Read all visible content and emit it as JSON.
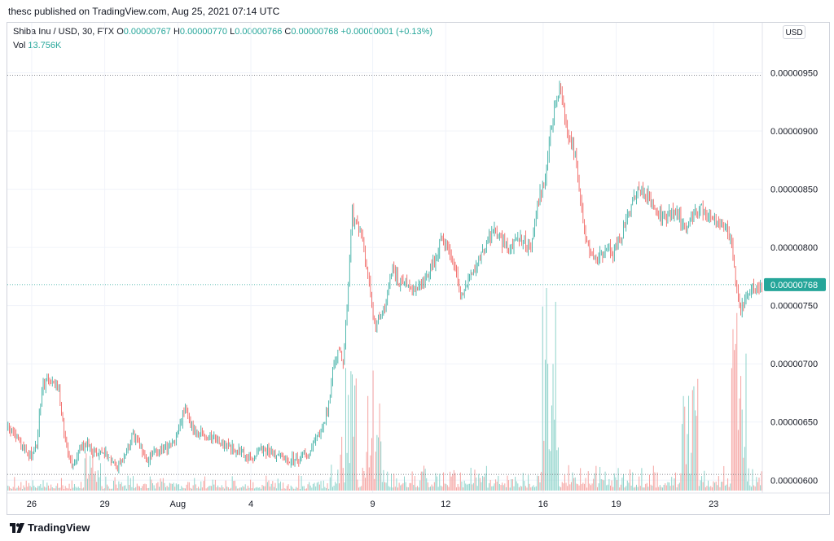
{
  "header": {
    "publisher_line": "thesc published on TradingView.com, Aug 25, 2021 07:14 UTC"
  },
  "legend": {
    "symbol": "Shiba Inu / USD, 30, FTX",
    "o_label": "O",
    "o_value": "0.00000767",
    "h_label": "H",
    "h_value": "0.00000770",
    "l_label": "L",
    "l_value": "0.00000766",
    "c_label": "C",
    "c_value": "0.00000768",
    "change": "+0.00000001 (+0.13%)",
    "vol_label": "Vol",
    "vol_value": "13.756K"
  },
  "currency_button": "USD",
  "footer": {
    "brand": "TradingView"
  },
  "colors": {
    "up": "#26a69a",
    "down": "#ef5350",
    "vol_up": "#8fd3cb",
    "vol_down": "#f5a3a1",
    "grid": "#f0f3fa",
    "current_price": "#26a69a"
  },
  "chart_data": {
    "type": "candlestick",
    "symbol": "Shiba Inu / USD",
    "interval": "30",
    "exchange": "FTX",
    "y_ticks": [
      "0.00000950",
      "0.00000900",
      "0.00000850",
      "0.00000800",
      "0.00000750",
      "0.00000700",
      "0.00000650",
      "0.00000600"
    ],
    "y_tick_values": [
      9.5e-06,
      9e-06,
      8.5e-06,
      8e-06,
      7.5e-06,
      7e-06,
      6.5e-06,
      6e-06
    ],
    "ylim": [
      5.89e-06,
      9.93e-06
    ],
    "x_ticks": [
      {
        "label": "26",
        "day": 1
      },
      {
        "label": "29",
        "day": 4
      },
      {
        "label": "Aug",
        "day": 7
      },
      {
        "label": "4",
        "day": 10
      },
      {
        "label": "9",
        "day": 15
      },
      {
        "label": "12",
        "day": 18
      },
      {
        "label": "16",
        "day": 22
      },
      {
        "label": "19",
        "day": 25
      },
      {
        "label": "23",
        "day": 29
      }
    ],
    "x_range_days": [
      0,
      31
    ],
    "current_price": "0.00000768",
    "current_price_value": 7.68e-06,
    "period_high_value": 9.48e-06,
    "period_low_value": 6.05e-06,
    "price_path": [
      [
        0.0,
        6.45e-06
      ],
      [
        0.3,
        6.4e-06
      ],
      [
        0.6,
        6.28e-06
      ],
      [
        0.9,
        6.2e-06
      ],
      [
        1.2,
        6.3e-06
      ],
      [
        1.4,
        6.75e-06
      ],
      [
        1.6,
        6.88e-06
      ],
      [
        1.9,
        6.8e-06
      ],
      [
        2.1,
        6.82e-06
      ],
      [
        2.3,
        6.45e-06
      ],
      [
        2.5,
        6.25e-06
      ],
      [
        2.7,
        6.12e-06
      ],
      [
        3.0,
        6.28e-06
      ],
      [
        3.3,
        6.3e-06
      ],
      [
        3.6,
        6.22e-06
      ],
      [
        3.9,
        6.26e-06
      ],
      [
        4.2,
        6.2e-06
      ],
      [
        4.5,
        6.12e-06
      ],
      [
        4.8,
        6.18e-06
      ],
      [
        5.1,
        6.38e-06
      ],
      [
        5.4,
        6.32e-06
      ],
      [
        5.7,
        6.18e-06
      ],
      [
        6.0,
        6.24e-06
      ],
      [
        6.3,
        6.26e-06
      ],
      [
        6.6,
        6.28e-06
      ],
      [
        6.9,
        6.32e-06
      ],
      [
        7.1,
        6.5e-06
      ],
      [
        7.3,
        6.6e-06
      ],
      [
        7.6,
        6.45e-06
      ],
      [
        7.9,
        6.4e-06
      ],
      [
        8.2,
        6.38e-06
      ],
      [
        8.5,
        6.36e-06
      ],
      [
        8.8,
        6.32e-06
      ],
      [
        9.1,
        6.28e-06
      ],
      [
        9.4,
        6.26e-06
      ],
      [
        9.7,
        6.22e-06
      ],
      [
        10.0,
        6.2e-06
      ],
      [
        10.3,
        6.24e-06
      ],
      [
        10.6,
        6.26e-06
      ],
      [
        10.9,
        6.22e-06
      ],
      [
        11.2,
        6.2e-06
      ],
      [
        11.5,
        6.18e-06
      ],
      [
        11.8,
        6.18e-06
      ],
      [
        12.1,
        6.2e-06
      ],
      [
        12.4,
        6.24e-06
      ],
      [
        12.7,
        6.36e-06
      ],
      [
        13.0,
        6.5e-06
      ],
      [
        13.2,
        6.65e-06
      ],
      [
        13.4,
        7e-06
      ],
      [
        13.6,
        7.15e-06
      ],
      [
        13.8,
        7e-06
      ],
      [
        14.0,
        7.7e-06
      ],
      [
        14.15,
        8.3e-06
      ],
      [
        14.3,
        8.2e-06
      ],
      [
        14.5,
        8.1e-06
      ],
      [
        14.7,
        7.9e-06
      ],
      [
        14.9,
        7.6e-06
      ],
      [
        15.1,
        7.3e-06
      ],
      [
        15.4,
        7.45e-06
      ],
      [
        15.6,
        7.6e-06
      ],
      [
        15.8,
        7.8e-06
      ],
      [
        16.1,
        7.7e-06
      ],
      [
        16.4,
        7.68e-06
      ],
      [
        16.7,
        7.62e-06
      ],
      [
        17.0,
        7.7e-06
      ],
      [
        17.3,
        7.8e-06
      ],
      [
        17.6,
        7.9e-06
      ],
      [
        17.8,
        8.1e-06
      ],
      [
        18.0,
        8e-06
      ],
      [
        18.3,
        7.9e-06
      ],
      [
        18.6,
        7.6e-06
      ],
      [
        18.8,
        7.65e-06
      ],
      [
        19.1,
        7.8e-06
      ],
      [
        19.4,
        7.9e-06
      ],
      [
        19.7,
        8.05e-06
      ],
      [
        20.0,
        8.15e-06
      ],
      [
        20.3,
        8.05e-06
      ],
      [
        20.6,
        8e-06
      ],
      [
        20.9,
        8.1e-06
      ],
      [
        21.2,
        8.05e-06
      ],
      [
        21.5,
        8e-06
      ],
      [
        21.8,
        8.4e-06
      ],
      [
        22.1,
        8.6e-06
      ],
      [
        22.3,
        9e-06
      ],
      [
        22.5,
        9.2e-06
      ],
      [
        22.7,
        9.4e-06
      ],
      [
        22.9,
        9.1e-06
      ],
      [
        23.1,
        8.9e-06
      ],
      [
        23.3,
        8.8e-06
      ],
      [
        23.5,
        8.5e-06
      ],
      [
        23.7,
        8.1e-06
      ],
      [
        24.0,
        7.9e-06
      ],
      [
        24.3,
        7.9e-06
      ],
      [
        24.6,
        8e-06
      ],
      [
        24.9,
        7.95e-06
      ],
      [
        25.2,
        8.1e-06
      ],
      [
        25.5,
        8.3e-06
      ],
      [
        25.8,
        8.45e-06
      ],
      [
        26.1,
        8.5e-06
      ],
      [
        26.4,
        8.4e-06
      ],
      [
        26.7,
        8.3e-06
      ],
      [
        27.0,
        8.25e-06
      ],
      [
        27.3,
        8.3e-06
      ],
      [
        27.6,
        8.25e-06
      ],
      [
        27.9,
        8.15e-06
      ],
      [
        28.2,
        8.3e-06
      ],
      [
        28.5,
        8.35e-06
      ],
      [
        28.8,
        8.28e-06
      ],
      [
        29.1,
        8.25e-06
      ],
      [
        29.4,
        8.18e-06
      ],
      [
        29.7,
        8.1e-06
      ],
      [
        29.9,
        7.7e-06
      ],
      [
        30.1,
        7.45e-06
      ],
      [
        30.3,
        7.55e-06
      ],
      [
        30.6,
        7.65e-06
      ],
      [
        30.9,
        7.68e-06
      ]
    ],
    "volume_spikes": [
      {
        "day": 22.3,
        "relative": 1.0
      },
      {
        "day": 30.0,
        "relative": 0.8
      },
      {
        "day": 15.0,
        "relative": 0.75
      },
      {
        "day": 14.0,
        "relative": 0.55
      },
      {
        "day": 3.5,
        "relative": 0.35
      },
      {
        "day": 28.0,
        "relative": 0.55
      }
    ]
  }
}
